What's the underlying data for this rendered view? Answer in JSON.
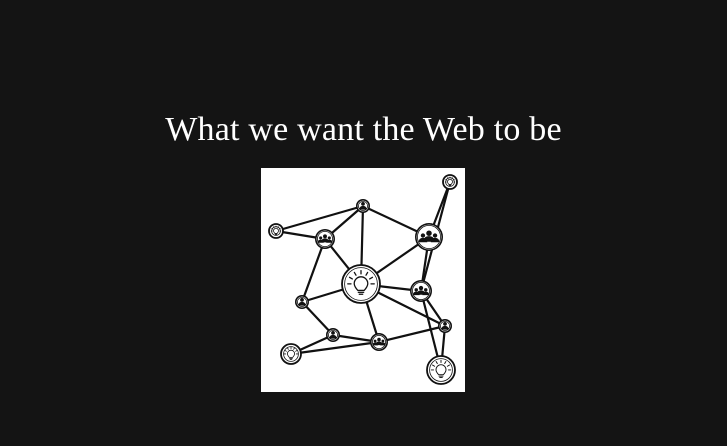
{
  "slide": {
    "title": "What we want the Web to be",
    "colors": {
      "background": "#141414",
      "title_text": "#ffffff",
      "figure_background": "#ffffff",
      "figure_ink": "#111111"
    }
  },
  "network_diagram": {
    "description_icons": [
      "lightbulb-icon",
      "person-icon",
      "group-icon"
    ],
    "nodes": [
      {
        "id": "n1",
        "type": "lightbulb"
      },
      {
        "id": "n2",
        "type": "lightbulb"
      },
      {
        "id": "n3",
        "type": "person"
      },
      {
        "id": "n4",
        "type": "group"
      },
      {
        "id": "n5",
        "type": "group"
      },
      {
        "id": "n6",
        "type": "lightbulb"
      },
      {
        "id": "n7",
        "type": "person"
      },
      {
        "id": "n8",
        "type": "group"
      },
      {
        "id": "n9",
        "type": "person"
      },
      {
        "id": "n10",
        "type": "person"
      },
      {
        "id": "n11",
        "type": "group"
      },
      {
        "id": "n12",
        "type": "lightbulb"
      },
      {
        "id": "n13",
        "type": "lightbulb"
      }
    ],
    "edges": [
      [
        "n1",
        "n3"
      ],
      [
        "n1",
        "n5"
      ],
      [
        "n2",
        "n4"
      ],
      [
        "n2",
        "n8"
      ],
      [
        "n3",
        "n4"
      ],
      [
        "n3",
        "n5"
      ],
      [
        "n3",
        "n6"
      ],
      [
        "n4",
        "n6"
      ],
      [
        "n4",
        "n8"
      ],
      [
        "n5",
        "n6"
      ],
      [
        "n5",
        "n7"
      ],
      [
        "n6",
        "n7"
      ],
      [
        "n6",
        "n8"
      ],
      [
        "n6",
        "n9"
      ],
      [
        "n6",
        "n11"
      ],
      [
        "n7",
        "n10"
      ],
      [
        "n8",
        "n9"
      ],
      [
        "n8",
        "n12"
      ],
      [
        "n9",
        "n11"
      ],
      [
        "n10",
        "n11"
      ],
      [
        "n10",
        "n13"
      ],
      [
        "n11",
        "n13"
      ],
      [
        "n12",
        "n9"
      ]
    ]
  }
}
